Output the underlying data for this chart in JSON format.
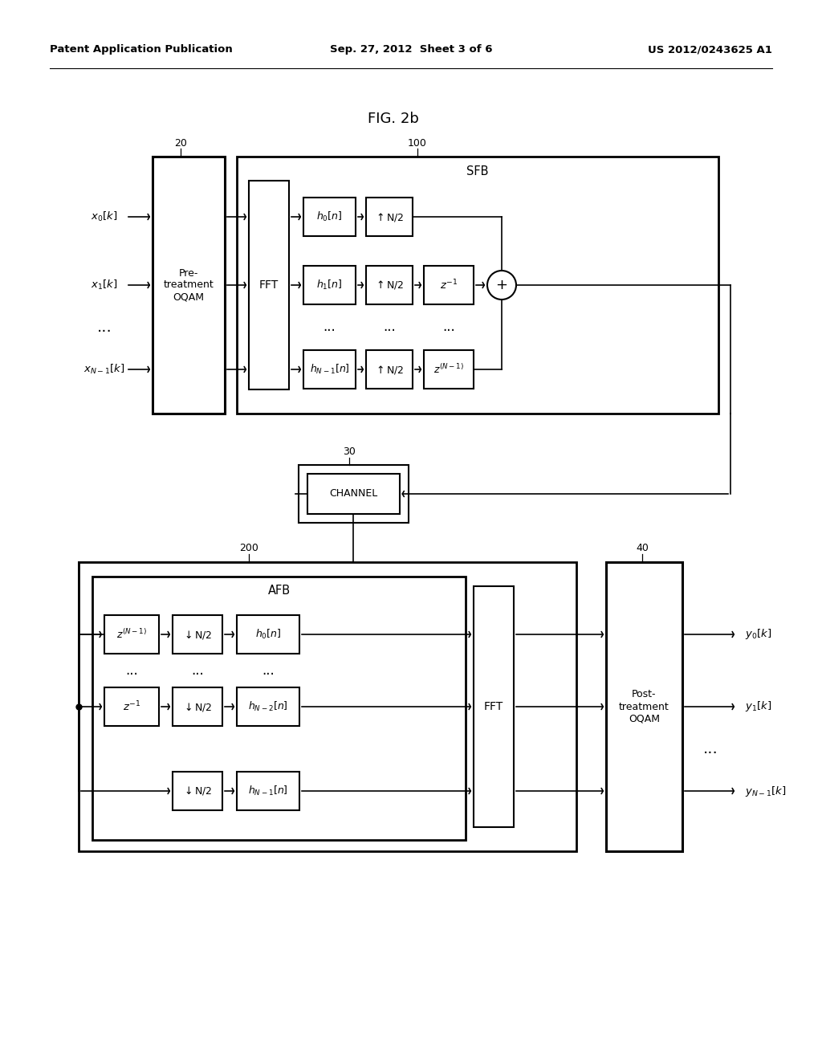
{
  "bg_color": "#ffffff",
  "header_left": "Patent Application Publication",
  "header_center": "Sep. 27, 2012  Sheet 3 of 6",
  "header_right": "US 2012/0243625 A1",
  "fig_title": "FIG. 2b",
  "label_20": "20",
  "label_100": "100",
  "label_30": "30",
  "label_200": "200",
  "label_40": "40",
  "sfb_label": "SFB",
  "afb_label": "AFB",
  "fft_label": "FFT",
  "channel_label": "CHANNEL",
  "pretreatment_label": "Pre-\ntreatment\nOQAM",
  "posttreatment_label": "Post-\ntreatment\nOQAM"
}
